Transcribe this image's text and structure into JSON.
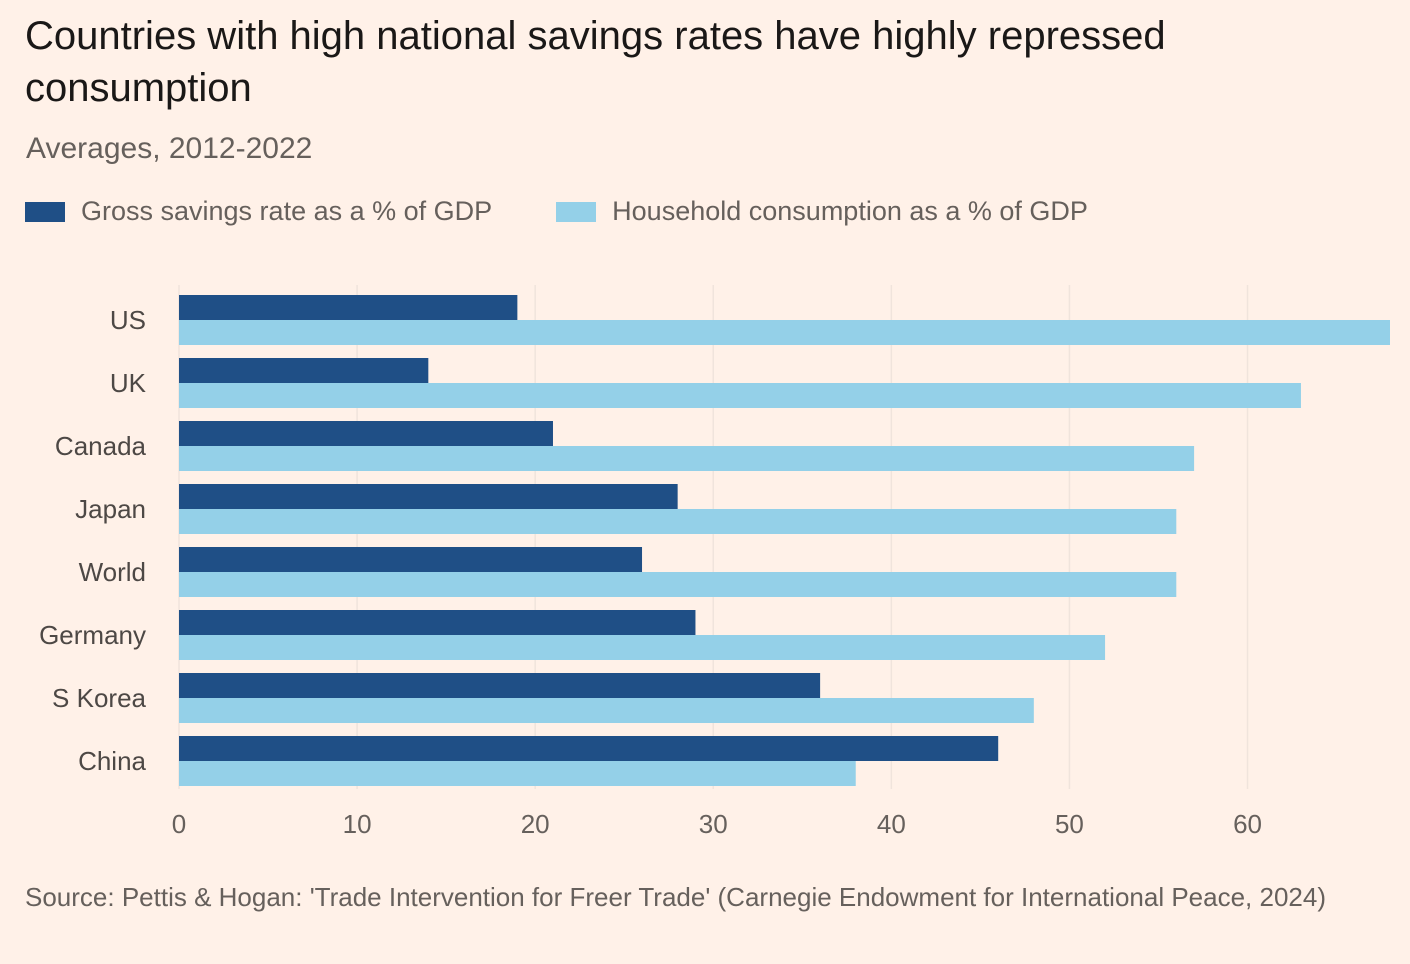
{
  "header": {
    "title": "Countries with high national savings rates have highly repressed consumption",
    "subtitle": "Averages, 2012-2022"
  },
  "legend": [
    {
      "label": "Gross savings rate as a % of GDP",
      "color": "#1f4f86"
    },
    {
      "label": "Household consumption as a % of GDP",
      "color": "#94d0e8"
    }
  ],
  "footer": {
    "source": "Source: Pettis & Hogan: 'Trade Intervention for Freer Trade' (Carnegie Endowment for International Peace, 2024)"
  },
  "chart_data": {
    "type": "bar",
    "orientation": "horizontal",
    "categories": [
      "US",
      "UK",
      "Canada",
      "Japan",
      "World",
      "Germany",
      "S Korea",
      "China"
    ],
    "series": [
      {
        "name": "Gross savings rate as a % of GDP",
        "color": "#1f4f86",
        "values": [
          19,
          14,
          21,
          28,
          26,
          29,
          36,
          46
        ]
      },
      {
        "name": "Household consumption as a % of GDP",
        "color": "#94d0e8",
        "values": [
          68,
          63,
          57,
          56,
          56,
          52,
          48,
          38
        ]
      }
    ],
    "xlim": [
      0,
      68
    ],
    "xticks": [
      0,
      10,
      20,
      30,
      40,
      50,
      60
    ],
    "grid": true
  }
}
